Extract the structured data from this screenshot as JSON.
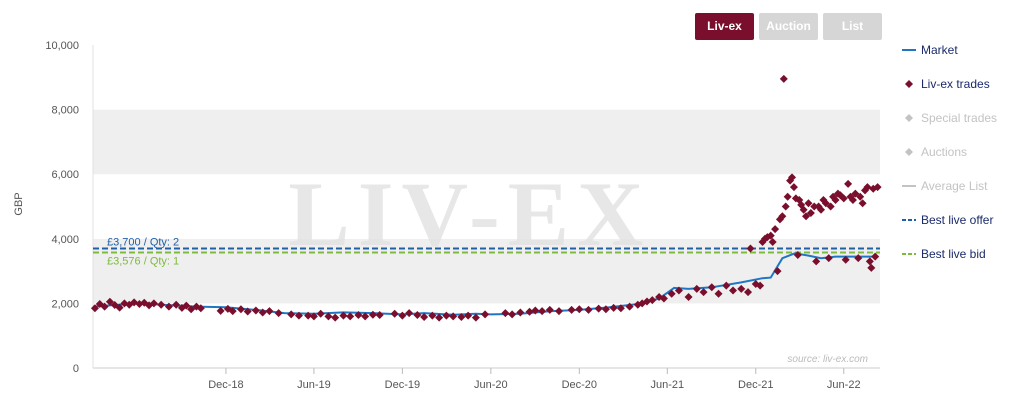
{
  "buttons": [
    {
      "label": "Liv-ex",
      "active": true
    },
    {
      "label": "Auction",
      "active": false
    },
    {
      "label": "List",
      "active": false
    }
  ],
  "legend": [
    {
      "label": "Market",
      "symbol": "line",
      "color": "#1f77c4",
      "enabled": true
    },
    {
      "label": "Liv-ex trades",
      "symbol": "diamond",
      "color": "#7a0f2d",
      "enabled": true
    },
    {
      "label": "Special trades",
      "symbol": "diamond",
      "color": "#c3c3c3",
      "enabled": false
    },
    {
      "label": "Auctions",
      "symbol": "diamond",
      "color": "#c3c3c3",
      "enabled": false
    },
    {
      "label": "Average List",
      "symbol": "line",
      "color": "#c3c3c3",
      "enabled": false
    },
    {
      "label": "Best live offer",
      "symbol": "dash",
      "color": "#1f5fa8",
      "enabled": true
    },
    {
      "label": "Best live bid",
      "symbol": "dash",
      "color": "#7dbb3c",
      "enabled": true
    }
  ],
  "watermark": "LIV-EX",
  "source_text": "source: liv-ex.com",
  "chart_data": {
    "type": "line",
    "ylabel": "GBP",
    "ylim": [
      0,
      10000
    ],
    "yticks": [
      0,
      2000,
      4000,
      6000,
      8000,
      10000
    ],
    "ytick_labels": [
      "0",
      "2,000",
      "4,000",
      "6,000",
      "8,000",
      "10,000"
    ],
    "xlim": [
      "2018-03-01",
      "2022-08-15"
    ],
    "xticks": [
      "2018-12-01",
      "2019-06-01",
      "2019-12-01",
      "2020-06-01",
      "2020-12-01",
      "2021-06-01",
      "2021-12-01",
      "2022-06-01"
    ],
    "xtick_labels": [
      "Dec-18",
      "Jun-19",
      "Dec-19",
      "Jun-20",
      "Dec-20",
      "Jun-21",
      "Dec-21",
      "Jun-22"
    ],
    "grid": "alternating horizontal bands",
    "legend_position": "right",
    "reference_lines": [
      {
        "name": "Best live offer",
        "value": 3700,
        "label": "£3,700 / Qty: 2",
        "color": "#1f5fa8"
      },
      {
        "name": "Best live bid",
        "value": 3576,
        "label": "£3,576 / Qty: 1",
        "color": "#7dbb3c"
      }
    ],
    "series": [
      {
        "name": "Market",
        "color": "#1f77c4",
        "points": [
          [
            "2018-03-01",
            1900
          ],
          [
            "2018-04-15",
            1950
          ],
          [
            "2018-06-01",
            2000
          ],
          [
            "2018-08-01",
            1950
          ],
          [
            "2018-10-01",
            1900
          ],
          [
            "2018-12-01",
            1880
          ],
          [
            "2019-02-01",
            1800
          ],
          [
            "2019-04-01",
            1700
          ],
          [
            "2019-06-01",
            1680
          ],
          [
            "2019-08-01",
            1720
          ],
          [
            "2019-10-01",
            1700
          ],
          [
            "2019-12-01",
            1660
          ],
          [
            "2020-01-15",
            1700
          ],
          [
            "2020-03-15",
            1650
          ],
          [
            "2020-05-01",
            1680
          ],
          [
            "2020-06-01",
            1660
          ],
          [
            "2020-08-01",
            1680
          ],
          [
            "2020-10-01",
            1760
          ],
          [
            "2020-12-01",
            1800
          ],
          [
            "2021-02-01",
            1880
          ],
          [
            "2021-04-01",
            1980
          ],
          [
            "2021-05-15",
            2150
          ],
          [
            "2021-06-15",
            2480
          ],
          [
            "2021-07-15",
            2450
          ],
          [
            "2021-09-01",
            2500
          ],
          [
            "2021-11-01",
            2650
          ],
          [
            "2021-12-15",
            2780
          ],
          [
            "2022-01-01",
            2800
          ],
          [
            "2022-01-25",
            3400
          ],
          [
            "2022-02-20",
            3550
          ],
          [
            "2022-03-20",
            3480
          ],
          [
            "2022-04-15",
            3400
          ],
          [
            "2022-05-15",
            3450
          ],
          [
            "2022-06-15",
            3450
          ],
          [
            "2022-07-15",
            3450
          ],
          [
            "2022-08-10",
            3450
          ]
        ]
      },
      {
        "name": "Liv-ex trades",
        "color": "#7a0f2d",
        "points": [
          [
            "2018-03-05",
            1850
          ],
          [
            "2018-03-15",
            1980
          ],
          [
            "2018-03-25",
            1900
          ],
          [
            "2018-04-05",
            2050
          ],
          [
            "2018-04-15",
            1950
          ],
          [
            "2018-04-25",
            1870
          ],
          [
            "2018-05-05",
            2000
          ],
          [
            "2018-05-15",
            1960
          ],
          [
            "2018-05-25",
            2030
          ],
          [
            "2018-06-05",
            1980
          ],
          [
            "2018-06-15",
            2020
          ],
          [
            "2018-06-25",
            1940
          ],
          [
            "2018-07-05",
            2000
          ],
          [
            "2018-07-20",
            1960
          ],
          [
            "2018-08-05",
            1900
          ],
          [
            "2018-08-20",
            1960
          ],
          [
            "2018-09-01",
            1860
          ],
          [
            "2018-09-10",
            1930
          ],
          [
            "2018-09-20",
            1820
          ],
          [
            "2018-10-01",
            1900
          ],
          [
            "2018-10-10",
            1850
          ],
          [
            "2018-11-20",
            1770
          ],
          [
            "2018-12-05",
            1830
          ],
          [
            "2018-12-15",
            1760
          ],
          [
            "2019-01-01",
            1820
          ],
          [
            "2019-01-15",
            1750
          ],
          [
            "2019-02-01",
            1780
          ],
          [
            "2019-02-15",
            1720
          ],
          [
            "2019-03-01",
            1760
          ],
          [
            "2019-03-20",
            1700
          ],
          [
            "2019-04-15",
            1660
          ],
          [
            "2019-05-01",
            1620
          ],
          [
            "2019-05-20",
            1620
          ],
          [
            "2019-06-01",
            1600
          ],
          [
            "2019-06-15",
            1680
          ],
          [
            "2019-07-01",
            1600
          ],
          [
            "2019-07-15",
            1560
          ],
          [
            "2019-08-01",
            1620
          ],
          [
            "2019-08-15",
            1600
          ],
          [
            "2019-09-01",
            1640
          ],
          [
            "2019-09-15",
            1600
          ],
          [
            "2019-10-01",
            1650
          ],
          [
            "2019-10-15",
            1640
          ],
          [
            "2019-11-15",
            1680
          ],
          [
            "2019-12-01",
            1620
          ],
          [
            "2019-12-15",
            1700
          ],
          [
            "2020-01-01",
            1640
          ],
          [
            "2020-01-15",
            1580
          ],
          [
            "2020-02-01",
            1620
          ],
          [
            "2020-02-15",
            1560
          ],
          [
            "2020-03-01",
            1620
          ],
          [
            "2020-03-15",
            1600
          ],
          [
            "2020-04-01",
            1580
          ],
          [
            "2020-04-15",
            1620
          ],
          [
            "2020-05-01",
            1560
          ],
          [
            "2020-05-20",
            1660
          ],
          [
            "2020-07-01",
            1700
          ],
          [
            "2020-07-15",
            1660
          ],
          [
            "2020-08-01",
            1720
          ],
          [
            "2020-08-20",
            1740
          ],
          [
            "2020-09-01",
            1780
          ],
          [
            "2020-09-15",
            1760
          ],
          [
            "2020-10-01",
            1800
          ],
          [
            "2020-10-20",
            1760
          ],
          [
            "2020-11-15",
            1800
          ],
          [
            "2020-12-01",
            1820
          ],
          [
            "2020-12-20",
            1800
          ],
          [
            "2021-01-10",
            1840
          ],
          [
            "2021-01-25",
            1820
          ],
          [
            "2021-02-10",
            1860
          ],
          [
            "2021-02-25",
            1850
          ],
          [
            "2021-03-15",
            1900
          ],
          [
            "2021-04-01",
            1960
          ],
          [
            "2021-04-10",
            2000
          ],
          [
            "2021-04-20",
            2060
          ],
          [
            "2021-05-01",
            2100
          ],
          [
            "2021-05-15",
            2200
          ],
          [
            "2021-05-25",
            2150
          ],
          [
            "2021-06-10",
            2300
          ],
          [
            "2021-06-25",
            2400
          ],
          [
            "2021-07-15",
            2200
          ],
          [
            "2021-08-01",
            2450
          ],
          [
            "2021-08-15",
            2350
          ],
          [
            "2021-09-01",
            2500
          ],
          [
            "2021-09-15",
            2300
          ],
          [
            "2021-10-01",
            2550
          ],
          [
            "2021-10-15",
            2400
          ],
          [
            "2021-11-01",
            2450
          ],
          [
            "2021-11-15",
            2350
          ],
          [
            "2021-11-20",
            3700
          ],
          [
            "2021-12-01",
            2600
          ],
          [
            "2021-12-10",
            2550
          ],
          [
            "2021-12-15",
            3900
          ],
          [
            "2021-12-20",
            4000
          ],
          [
            "2021-12-25",
            4050
          ],
          [
            "2022-01-01",
            4100
          ],
          [
            "2022-01-05",
            3900
          ],
          [
            "2022-01-10",
            4300
          ],
          [
            "2022-01-15",
            3000
          ],
          [
            "2022-01-20",
            4600
          ],
          [
            "2022-01-25",
            4700
          ],
          [
            "2022-01-28",
            8950
          ],
          [
            "2022-02-01",
            5000
          ],
          [
            "2022-02-05",
            5300
          ],
          [
            "2022-02-10",
            5800
          ],
          [
            "2022-02-14",
            5900
          ],
          [
            "2022-02-18",
            5600
          ],
          [
            "2022-02-22",
            5250
          ],
          [
            "2022-02-26",
            3500
          ],
          [
            "2022-03-01",
            5200
          ],
          [
            "2022-03-05",
            5050
          ],
          [
            "2022-03-10",
            4900
          ],
          [
            "2022-03-15",
            4700
          ],
          [
            "2022-03-20",
            5100
          ],
          [
            "2022-03-25",
            4800
          ],
          [
            "2022-04-01",
            5000
          ],
          [
            "2022-04-05",
            3300
          ],
          [
            "2022-04-10",
            5000
          ],
          [
            "2022-04-15",
            4900
          ],
          [
            "2022-04-20",
            5200
          ],
          [
            "2022-04-25",
            5100
          ],
          [
            "2022-05-01",
            3400
          ],
          [
            "2022-05-05",
            5000
          ],
          [
            "2022-05-10",
            5300
          ],
          [
            "2022-05-15",
            5200
          ],
          [
            "2022-05-20",
            5400
          ],
          [
            "2022-05-25",
            5350
          ],
          [
            "2022-06-01",
            5250
          ],
          [
            "2022-06-05",
            3350
          ],
          [
            "2022-06-10",
            5700
          ],
          [
            "2022-06-15",
            5300
          ],
          [
            "2022-06-20",
            5200
          ],
          [
            "2022-06-25",
            5400
          ],
          [
            "2022-07-01",
            3400
          ],
          [
            "2022-07-05",
            5300
          ],
          [
            "2022-07-10",
            5100
          ],
          [
            "2022-07-15",
            5500
          ],
          [
            "2022-07-20",
            5600
          ],
          [
            "2022-07-25",
            3300
          ],
          [
            "2022-07-28",
            3100
          ],
          [
            "2022-08-01",
            5550
          ],
          [
            "2022-08-05",
            3450
          ],
          [
            "2022-08-10",
            5600
          ]
        ]
      }
    ]
  }
}
